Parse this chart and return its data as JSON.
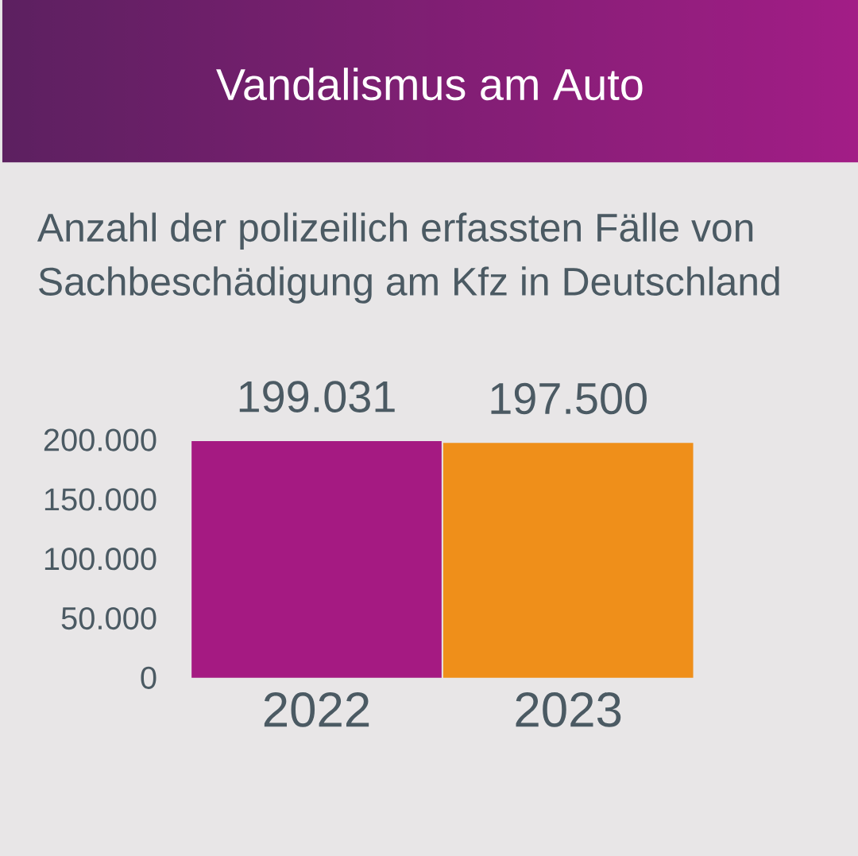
{
  "chart_data": {
    "type": "bar",
    "title": "Vandalismus am Auto",
    "subtitle": "Anzahl der polizeilich erfassten Fälle von Sachbeschädigung am Kfz in Deutschland",
    "categories": [
      "2022",
      "2023"
    ],
    "values": [
      199031,
      197500
    ],
    "colors": [
      "#a51a82",
      "#ef8f1a"
    ],
    "value_labels": [
      "199.031",
      "197.500"
    ],
    "ylim": [
      0,
      200000
    ],
    "yticks": [
      0,
      {
        "value": 50000,
        "label": "50.000"
      },
      {
        "value": 100000,
        "label": "100.000"
      },
      {
        "value": 150000,
        "label": "150.000"
      },
      {
        "value": 200000,
        "label": "200.000"
      }
    ]
  }
}
